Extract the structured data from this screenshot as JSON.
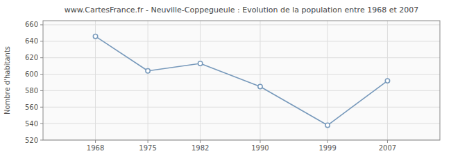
{
  "chart_data": {
    "type": "line",
    "title": "www.CartesFrance.fr - Neuville-Coppegueule : Evolution de la population entre 1968 et 2007",
    "ylabel": "Nombre d'habitants",
    "x": [
      1968,
      1975,
      1982,
      1990,
      1999,
      2007
    ],
    "values": [
      646,
      604,
      613,
      585,
      538,
      592
    ],
    "xlim": [
      1961,
      2014
    ],
    "xticks": [
      1968,
      1975,
      1982,
      1990,
      1999,
      2007
    ],
    "ylim": [
      520,
      665
    ],
    "yticks": [
      520,
      540,
      560,
      580,
      600,
      620,
      640,
      660
    ],
    "grid": true,
    "color": "#7799bb",
    "marker": "circle"
  }
}
